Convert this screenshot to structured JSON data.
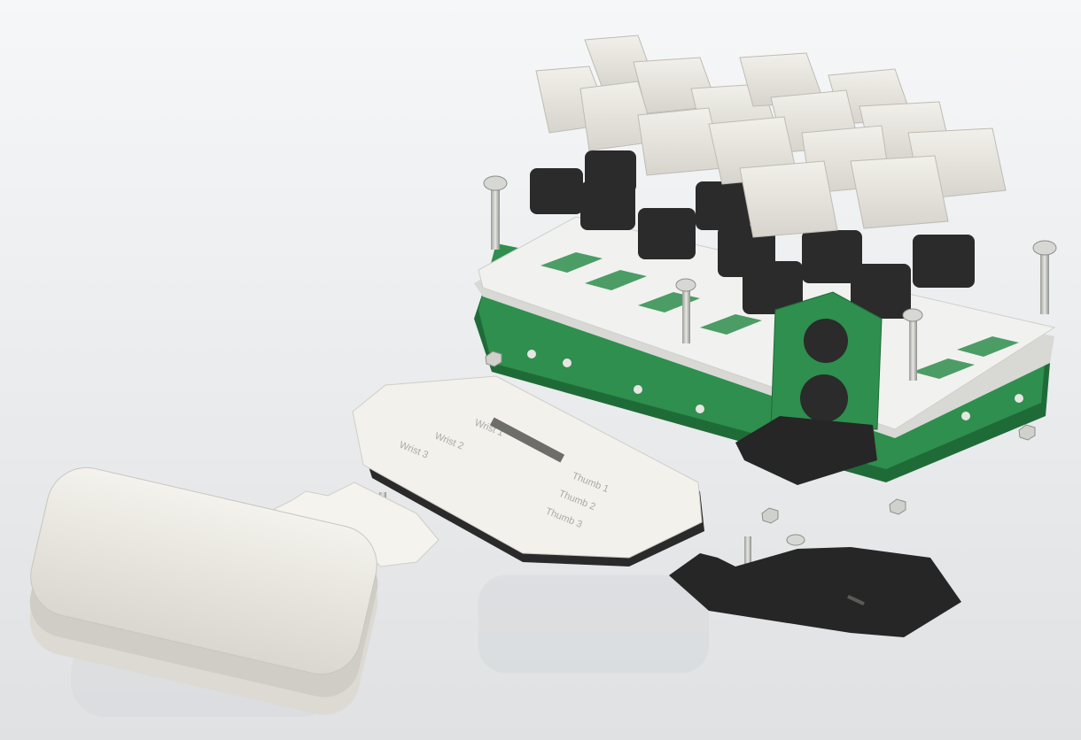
{
  "scene": {
    "subject": "exploded view of a handheld keyboard assembly",
    "colors": {
      "background_top": "#f6f7f8",
      "background_bottom": "#dfe1e3",
      "keycap": "#e9e7e0",
      "keycap_shadow": "#c9c7bf",
      "switch": "#2b2b2b",
      "plate": "#f1f1ef",
      "pcb": "#2f8f4e",
      "pcb_dark": "#1f6b38",
      "screw": "#c9c9c6",
      "base_black": "#262626",
      "palm_rest": "#ebe9e2"
    }
  },
  "engravings": {
    "wrist_1": "Wrist 1",
    "wrist_2": "Wrist 2",
    "wrist_3": "Wrist 3",
    "thumb_1": "Thumb 1",
    "thumb_2": "Thumb 2",
    "thumb_3": "Thumb 3"
  }
}
